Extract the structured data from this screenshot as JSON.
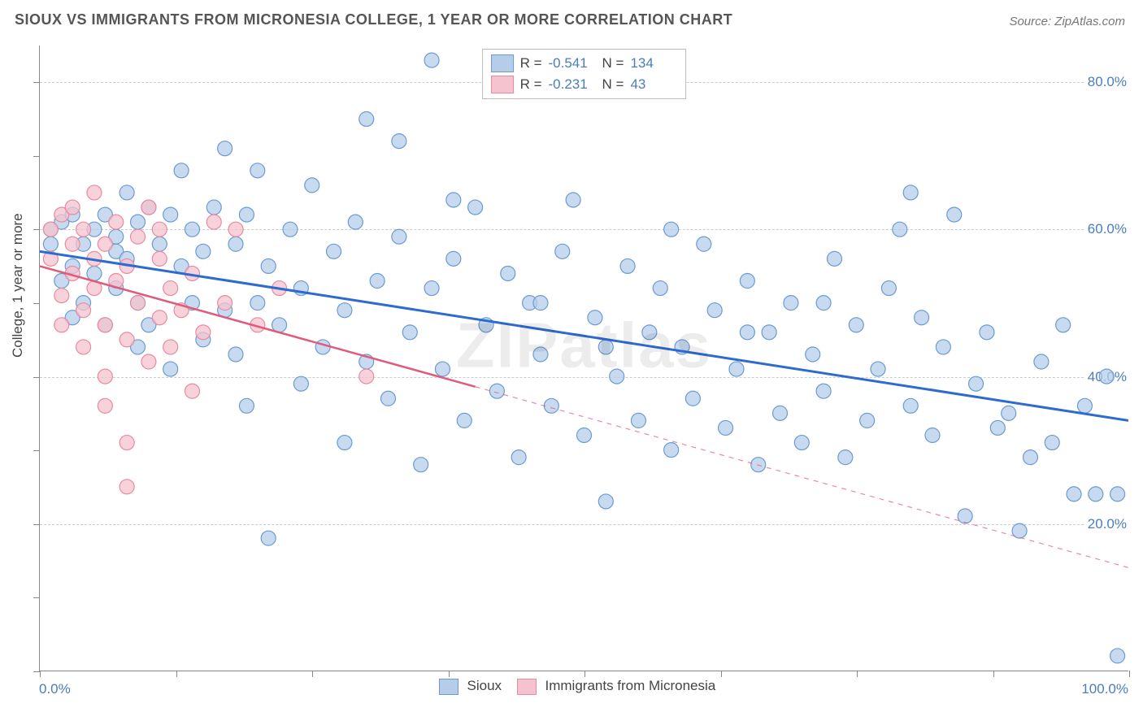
{
  "header": {
    "title": "SIOUX VS IMMIGRANTS FROM MICRONESIA COLLEGE, 1 YEAR OR MORE CORRELATION CHART",
    "source": "Source: ZipAtlas.com"
  },
  "watermark": "ZIPatlas",
  "axes": {
    "y_title": "College, 1 year or more",
    "x_min": 0,
    "x_max": 100,
    "y_min": 0,
    "y_max": 85,
    "x_label_min": "0.0%",
    "x_label_max": "100.0%",
    "y_gridlines": [
      20,
      40,
      60,
      80
    ],
    "y_gridline_labels": [
      "20.0%",
      "40.0%",
      "60.0%",
      "80.0%"
    ],
    "x_tick_positions": [
      0,
      12.5,
      25,
      37.5,
      50,
      62.5,
      75,
      87.5,
      100
    ],
    "y_tick_positions": [
      0,
      10,
      20,
      30,
      40,
      50,
      60,
      70,
      80
    ]
  },
  "legend_top": {
    "rows": [
      {
        "swatch_fill": "#b6cdea",
        "swatch_stroke": "#6b9bd1",
        "r_label": "R =",
        "r_value": "-0.541",
        "n_label": "N =",
        "n_value": "134"
      },
      {
        "swatch_fill": "#f5c3cf",
        "swatch_stroke": "#e88aa0",
        "r_label": "R =",
        "r_value": "-0.231",
        "n_label": "N =",
        "n_value": "43"
      }
    ]
  },
  "legend_bottom": {
    "items": [
      {
        "swatch_fill": "#b6cdea",
        "swatch_stroke": "#6b9bd1",
        "label": "Sioux"
      },
      {
        "swatch_fill": "#f5c3cf",
        "swatch_stroke": "#e88aa0",
        "label": "Immigrants from Micronesia"
      }
    ]
  },
  "series": [
    {
      "id": "sioux",
      "type": "scatter",
      "marker_radius": 9,
      "marker_fill": "#b6cdea",
      "marker_fill_opacity": 0.75,
      "marker_stroke": "#6b9bd1",
      "marker_stroke_width": 1.2,
      "trend_color": "#2e6bd0",
      "trend_width": 3,
      "trend_start": [
        0,
        57
      ],
      "trend_end": [
        100,
        34
      ],
      "trend_solid_until_x": 100,
      "points": [
        [
          1,
          58
        ],
        [
          1,
          60
        ],
        [
          2,
          53
        ],
        [
          2,
          61
        ],
        [
          3,
          55
        ],
        [
          3,
          62
        ],
        [
          3,
          48
        ],
        [
          4,
          58
        ],
        [
          4,
          50
        ],
        [
          5,
          60
        ],
        [
          5,
          54
        ],
        [
          6,
          62
        ],
        [
          6,
          47
        ],
        [
          7,
          57
        ],
        [
          7,
          59
        ],
        [
          7,
          52
        ],
        [
          8,
          65
        ],
        [
          8,
          56
        ],
        [
          9,
          61
        ],
        [
          9,
          50
        ],
        [
          9,
          44
        ],
        [
          10,
          63
        ],
        [
          10,
          47
        ],
        [
          11,
          58
        ],
        [
          12,
          62
        ],
        [
          12,
          41
        ],
        [
          13,
          55
        ],
        [
          13,
          68
        ],
        [
          14,
          50
        ],
        [
          14,
          60
        ],
        [
          15,
          45
        ],
        [
          15,
          57
        ],
        [
          16,
          63
        ],
        [
          17,
          49
        ],
        [
          17,
          71
        ],
        [
          18,
          43
        ],
        [
          18,
          58
        ],
        [
          19,
          62
        ],
        [
          19,
          36
        ],
        [
          20,
          50
        ],
        [
          20,
          68
        ],
        [
          21,
          18
        ],
        [
          21,
          55
        ],
        [
          22,
          47
        ],
        [
          23,
          60
        ],
        [
          24,
          39
        ],
        [
          24,
          52
        ],
        [
          25,
          66
        ],
        [
          26,
          44
        ],
        [
          27,
          57
        ],
        [
          28,
          31
        ],
        [
          28,
          49
        ],
        [
          29,
          61
        ],
        [
          30,
          42
        ],
        [
          30,
          75
        ],
        [
          31,
          53
        ],
        [
          32,
          37
        ],
        [
          33,
          59
        ],
        [
          33,
          72
        ],
        [
          34,
          46
        ],
        [
          35,
          28
        ],
        [
          36,
          52
        ],
        [
          36,
          83
        ],
        [
          37,
          41
        ],
        [
          38,
          56
        ],
        [
          39,
          34
        ],
        [
          40,
          63
        ],
        [
          41,
          47
        ],
        [
          42,
          38
        ],
        [
          43,
          54
        ],
        [
          44,
          29
        ],
        [
          45,
          50
        ],
        [
          46,
          43
        ],
        [
          47,
          36
        ],
        [
          48,
          57
        ],
        [
          49,
          64
        ],
        [
          50,
          32
        ],
        [
          51,
          48
        ],
        [
          52,
          23
        ],
        [
          53,
          40
        ],
        [
          54,
          55
        ],
        [
          55,
          34
        ],
        [
          56,
          46
        ],
        [
          57,
          52
        ],
        [
          58,
          30
        ],
        [
          59,
          44
        ],
        [
          60,
          37
        ],
        [
          61,
          58
        ],
        [
          62,
          49
        ],
        [
          63,
          33
        ],
        [
          64,
          41
        ],
        [
          65,
          53
        ],
        [
          66,
          28
        ],
        [
          67,
          46
        ],
        [
          68,
          35
        ],
        [
          69,
          50
        ],
        [
          70,
          31
        ],
        [
          71,
          43
        ],
        [
          72,
          38
        ],
        [
          73,
          56
        ],
        [
          74,
          29
        ],
        [
          75,
          47
        ],
        [
          76,
          34
        ],
        [
          77,
          41
        ],
        [
          78,
          52
        ],
        [
          79,
          60
        ],
        [
          80,
          36
        ],
        [
          81,
          48
        ],
        [
          82,
          32
        ],
        [
          83,
          44
        ],
        [
          84,
          62
        ],
        [
          85,
          21
        ],
        [
          86,
          39
        ],
        [
          87,
          46
        ],
        [
          88,
          33
        ],
        [
          89,
          35
        ],
        [
          90,
          19
        ],
        [
          91,
          29
        ],
        [
          92,
          42
        ],
        [
          93,
          31
        ],
        [
          94,
          47
        ],
        [
          95,
          24
        ],
        [
          96,
          36
        ],
        [
          97,
          24
        ],
        [
          98,
          40
        ],
        [
          99,
          24
        ],
        [
          99,
          2
        ],
        [
          80,
          65
        ],
        [
          72,
          50
        ],
        [
          65,
          46
        ],
        [
          58,
          60
        ],
        [
          52,
          44
        ],
        [
          46,
          50
        ],
        [
          38,
          64
        ]
      ]
    },
    {
      "id": "micronesia",
      "type": "scatter",
      "marker_radius": 9,
      "marker_fill": "#f5c3cf",
      "marker_fill_opacity": 0.75,
      "marker_stroke": "#e88aa0",
      "marker_stroke_width": 1.2,
      "trend_color": "#e05a7a",
      "trend_width": 2.5,
      "trend_start": [
        0,
        55
      ],
      "trend_end": [
        100,
        14
      ],
      "trend_solid_until_x": 40,
      "points": [
        [
          1,
          60
        ],
        [
          1,
          56
        ],
        [
          2,
          62
        ],
        [
          2,
          51
        ],
        [
          2,
          47
        ],
        [
          3,
          58
        ],
        [
          3,
          54
        ],
        [
          3,
          63
        ],
        [
          4,
          49
        ],
        [
          4,
          60
        ],
        [
          4,
          44
        ],
        [
          5,
          56
        ],
        [
          5,
          52
        ],
        [
          5,
          65
        ],
        [
          6,
          47
        ],
        [
          6,
          58
        ],
        [
          6,
          40
        ],
        [
          7,
          53
        ],
        [
          7,
          61
        ],
        [
          8,
          45
        ],
        [
          8,
          55
        ],
        [
          8,
          31
        ],
        [
          9,
          50
        ],
        [
          9,
          59
        ],
        [
          10,
          42
        ],
        [
          10,
          63
        ],
        [
          11,
          48
        ],
        [
          11,
          56
        ],
        [
          11,
          60
        ],
        [
          12,
          44
        ],
        [
          12,
          52
        ],
        [
          13,
          49
        ],
        [
          14,
          38
        ],
        [
          14,
          54
        ],
        [
          15,
          46
        ],
        [
          16,
          61
        ],
        [
          17,
          50
        ],
        [
          18,
          60
        ],
        [
          20,
          47
        ],
        [
          22,
          52
        ],
        [
          8,
          25
        ],
        [
          6,
          36
        ],
        [
          30,
          40
        ]
      ]
    }
  ],
  "style": {
    "background": "#ffffff",
    "grid_color": "#cccccc",
    "axis_color": "#888888",
    "title_color": "#555555",
    "source_color": "#777777",
    "axis_label_color": "#4a7ebb",
    "yaxis_title_color": "#444444",
    "title_fontsize": 18,
    "label_fontsize": 17
  }
}
